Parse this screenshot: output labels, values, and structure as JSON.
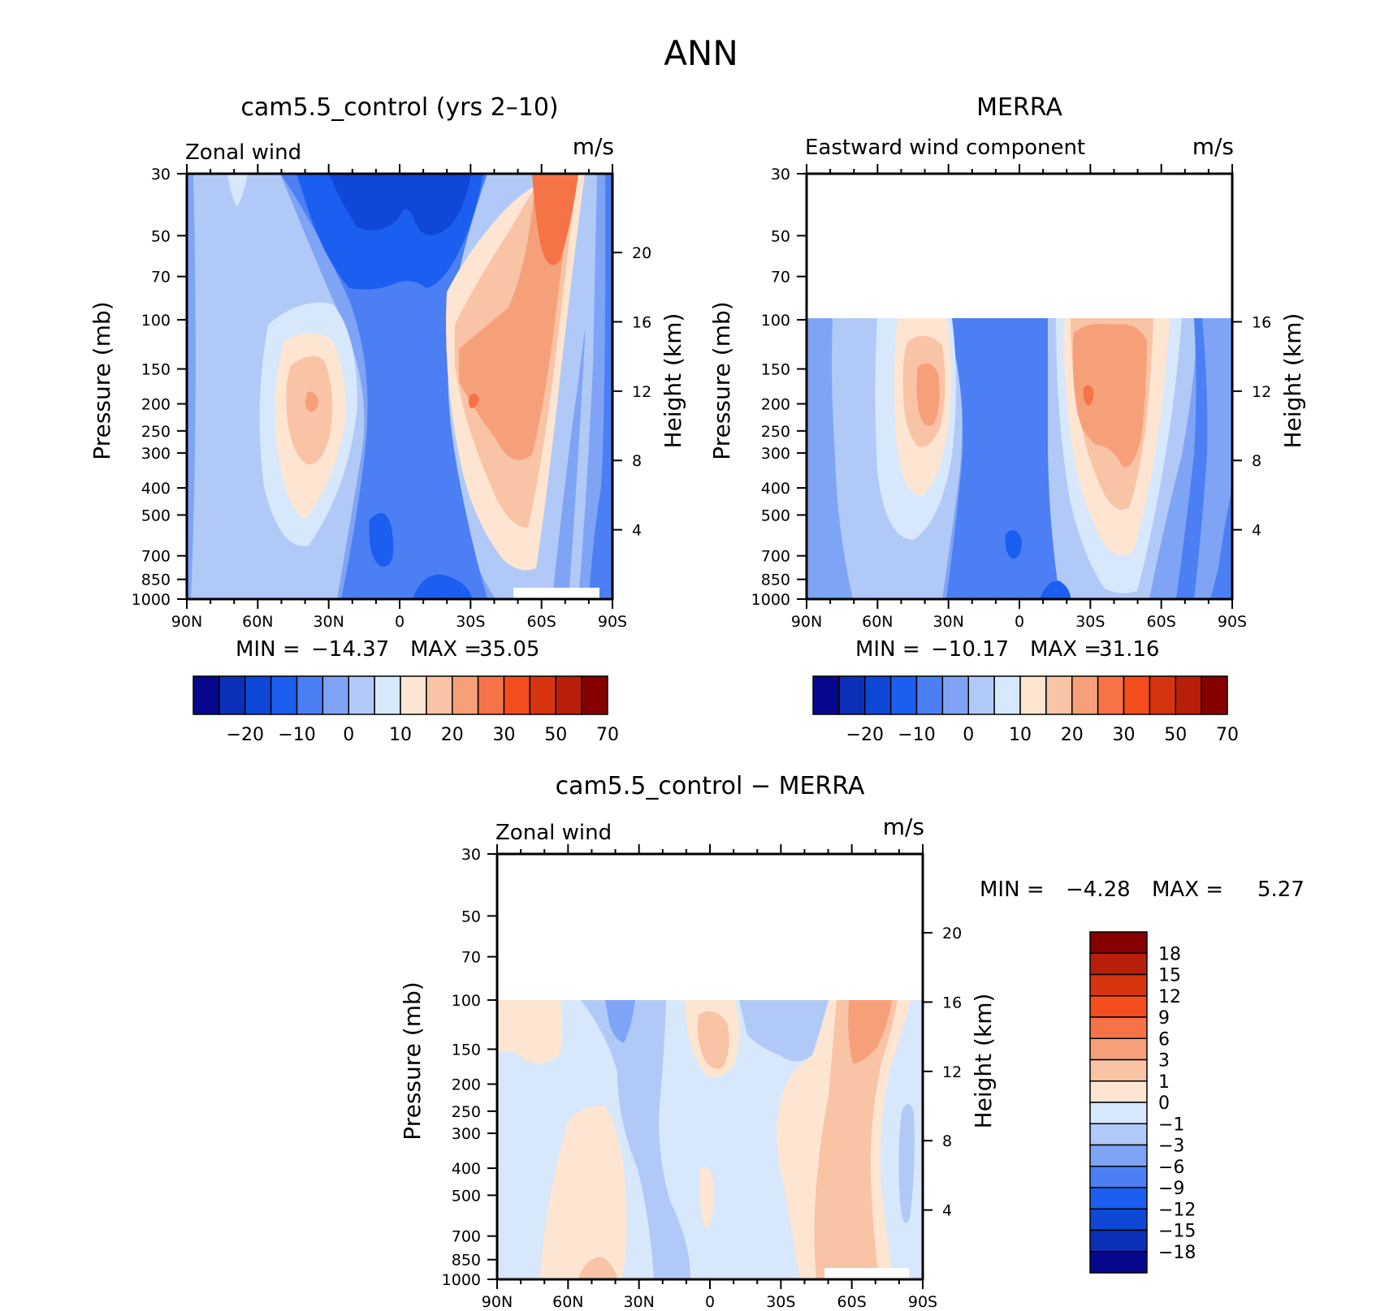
{
  "figure_title": "ANN",
  "colors": {
    "main_scale": [
      "#08088f",
      "#0c2fb7",
      "#0f47d6",
      "#1b5ef0",
      "#4b7ff3",
      "#7fa4f5",
      "#b1c9f7",
      "#d7e8fc",
      "#fde5d2",
      "#f9c3a5",
      "#f6a07a",
      "#f67348",
      "#f44d1e",
      "#d73510",
      "#b81f0a",
      "#860000"
    ],
    "diff_scale": [
      "#860000",
      "#b81f0a",
      "#d73510",
      "#f44d1e",
      "#f67348",
      "#f6a07a",
      "#f9c3a5",
      "#fde5d2",
      "#d7e8fc",
      "#b1c9f7",
      "#7fa4f5",
      "#4b7ff3",
      "#1b5ef0",
      "#0f47d6",
      "#0c2fb7",
      "#08088f"
    ]
  },
  "chart_data": [
    {
      "type": "heatmap",
      "title": "cam5.5_control (yrs 2–10)",
      "left_label": "Zonal wind",
      "units": "m/s",
      "ylabel": "Pressure (mb)",
      "ylabel_right": "Height (km)",
      "y_ticks": [
        "30",
        "50",
        "70",
        "100",
        "150",
        "200",
        "250",
        "300",
        "400",
        "500",
        "700",
        "850",
        "1000"
      ],
      "y_right_ticks": [
        "20",
        "16",
        "12",
        "8",
        "4"
      ],
      "x_ticks": [
        "90N",
        "60N",
        "30N",
        "0",
        "30S",
        "60S",
        "90S"
      ],
      "ylim": [
        1000,
        30
      ],
      "xlim": [
        "90N",
        "90S"
      ],
      "min_label": "MIN =",
      "min_value": "−14.37",
      "max_label": "MAX =",
      "max_value": "35.05",
      "colorbar_labels": [
        "−20",
        "−10",
        "0",
        "10",
        "20",
        "30",
        "50",
        "70"
      ],
      "jets": [
        {
          "lat": "~35N",
          "pressure_mb": 200,
          "max_ms": 26
        },
        {
          "lat": "~35S",
          "pressure_mb": 200,
          "max_ms": 35
        }
      ]
    },
    {
      "type": "heatmap",
      "title": "MERRA",
      "left_label": "Eastward wind component",
      "units": "m/s",
      "ylabel": "Pressure (mb)",
      "ylabel_right": "Height (km)",
      "y_ticks": [
        "30",
        "50",
        "70",
        "100",
        "150",
        "200",
        "250",
        "300",
        "400",
        "500",
        "700",
        "850",
        "1000"
      ],
      "y_right_ticks": [
        "16",
        "12",
        "8",
        "4"
      ],
      "x_ticks": [
        "90N",
        "60N",
        "30N",
        "0",
        "30S",
        "60S",
        "90S"
      ],
      "ylim": [
        1000,
        30
      ],
      "min_label": "MIN =",
      "min_value": "−10.17",
      "max_label": "MAX =",
      "max_value": "31.16",
      "colorbar_labels": [
        "−20",
        "−10",
        "0",
        "10",
        "20",
        "30",
        "50",
        "70"
      ],
      "jets": [
        {
          "lat": "~35N",
          "pressure_mb": 200,
          "max_ms": 28
        },
        {
          "lat": "~30S",
          "pressure_mb": 200,
          "max_ms": 31
        }
      ]
    },
    {
      "type": "heatmap",
      "title": "cam5.5_control − MERRA",
      "left_label": "Zonal wind",
      "units": "m/s",
      "ylabel": "Pressure (mb)",
      "ylabel_right": "Height (km)",
      "y_ticks": [
        "30",
        "50",
        "70",
        "100",
        "150",
        "200",
        "250",
        "300",
        "400",
        "500",
        "700",
        "850",
        "1000"
      ],
      "y_right_ticks": [
        "20",
        "16",
        "12",
        "8",
        "4"
      ],
      "x_ticks": [
        "90N",
        "60N",
        "30N",
        "0",
        "30S",
        "60S",
        "90S"
      ],
      "ylim": [
        1000,
        30
      ],
      "min_label": "MIN =",
      "min_value": "−4.28",
      "max_label": "MAX =",
      "max_value": "5.27",
      "colorbar_labels": [
        "18",
        "15",
        "12",
        "9",
        "6",
        "3",
        "1",
        "0",
        "−1",
        "−3",
        "−6",
        "−9",
        "−12",
        "−15",
        "−18"
      ]
    }
  ]
}
